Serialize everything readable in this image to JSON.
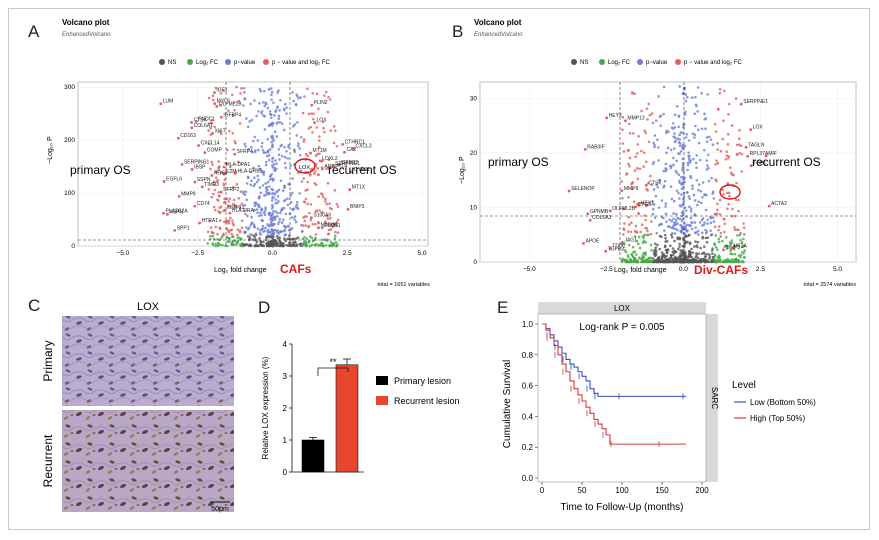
{
  "panelA": {
    "letter": "A",
    "title": "Volcano plot",
    "subtitle": "EnhancedVolcano",
    "legend": [
      "NS",
      "Log₂ FC",
      "p−value",
      "p − value and log₂ FC"
    ],
    "y_title": "−Log₁₀ P",
    "x_title": "Log₂ fold change",
    "group_label": "CAFs",
    "left_annotation": "primary OS",
    "right_annotation": "recurrent OS",
    "total": "total = 1651 variables",
    "x_ticks": [
      "−5.0",
      "−2.5",
      "0.0",
      "2.5",
      "5.0"
    ],
    "y_ticks": [
      "0",
      "100",
      "200",
      "300"
    ],
    "gene_labels_left": [
      "MMP9",
      "LUM",
      "CTSK",
      "E2M",
      "MYL9",
      "OLFML2B",
      "IBSP",
      "SFRP4",
      "HTRA1",
      "XIST",
      "CD74",
      "COL6A1",
      "SERPING1",
      "MMP13",
      "ASPN",
      "HLA-DRA",
      "IGFBP4",
      "CD163",
      "SPP1",
      "HLA-DRB1",
      "CXCL14",
      "HLA-DPA1",
      "EGFL6",
      "TIMP3",
      "FNDC1",
      "IGF1",
      "PLA2G2A",
      "SFRP2",
      "COMP",
      "RGS5",
      "SSPN"
    ],
    "gene_labels_right": [
      "IGFBP2",
      "CYR61",
      "MT1X",
      "FSCN1",
      "MT1M",
      "SERPINE1",
      "CTHRC1",
      "S100A6",
      "BNIP3",
      "LOXL2",
      "ANGPTL4",
      "LOX",
      "NDRG1",
      "PLIN2",
      "CA2",
      "CXCL3"
    ],
    "lox_label": "LOX"
  },
  "panelB": {
    "letter": "B",
    "title": "Volcano plot",
    "subtitle": "EnhancedVolcano",
    "legend": [
      "NS",
      "Log₂ FC",
      "p−value",
      "p − value and log₂ FC"
    ],
    "y_title": "−Log₁₀ P",
    "x_title": "Log₂ fold change",
    "group_label": "Div-CAFs",
    "left_annotation": "primary OS",
    "right_annotation": "recurrent OS",
    "total": "total = 2574 variables",
    "x_ticks": [
      "−5.0",
      "−2.5",
      "0.0",
      "2.5",
      "5.0"
    ],
    "y_ticks": [
      "0",
      "10",
      "20",
      "30"
    ],
    "gene_labels_left": [
      "RAB3IF",
      "TDO2",
      "HEY2",
      "HEY1",
      "SELENOP",
      "OLFML2B",
      "MMP9",
      "CYGB",
      "TGFB3",
      "GPNMB",
      "JAG1",
      "CTSK",
      "COL6A3",
      "APOE",
      "MMP13"
    ],
    "gene_labels_right": [
      "RPL37A",
      "MIF",
      "TGB1",
      "LOX",
      "TIMP3",
      "SERPINE1",
      "MT2A",
      "TAGLN",
      "ACTA2"
    ]
  },
  "panelC": {
    "letter": "C",
    "title": "LOX",
    "row_labels": [
      "Primary",
      "Recurrent"
    ],
    "scale_bar": "50μm"
  },
  "panelD": {
    "letter": "D",
    "y_title": "Relative LOX expression (%)",
    "significance": "**",
    "legend": [
      "Primary lesion",
      "Recurrent lesion"
    ],
    "colors": [
      "#000000",
      "#e8452e"
    ],
    "y_ticks": [
      "0",
      "1",
      "2",
      "3",
      "4"
    ],
    "chart_data": {
      "type": "bar",
      "categories": [
        "Primary lesion",
        "Recurrent lesion"
      ],
      "values": [
        1.0,
        3.35
      ],
      "errors": [
        0.08,
        0.18
      ],
      "ylim": [
        0,
        4
      ],
      "ylabel": "Relative LOX expression (%)"
    }
  },
  "panelE": {
    "letter": "E",
    "strip_top": "LOX",
    "strip_right": "SARC",
    "stat": "Log-rank P = 0.005",
    "y_title": "Cumulative Survival",
    "x_title": "Time to Follow-Up (months)",
    "x_ticks": [
      "0",
      "50",
      "100",
      "150",
      "200"
    ],
    "y_ticks": [
      "0.0",
      "0.2",
      "0.4",
      "0.6",
      "0.8",
      "1.0"
    ],
    "legend_title": "Level",
    "legend": [
      "Low (Bottom 50%)",
      "High (Top 50%)"
    ],
    "colors": [
      "#3050c8",
      "#d83a3a"
    ],
    "chart_data": {
      "type": "line",
      "xlim": [
        0,
        200
      ],
      "ylim": [
        0,
        1
      ],
      "series": [
        {
          "name": "Low (Bottom 50%)",
          "x": [
            0,
            5,
            10,
            15,
            20,
            25,
            30,
            35,
            40,
            45,
            50,
            55,
            60,
            65,
            70,
            80,
            100,
            140,
            180
          ],
          "y": [
            1.0,
            0.97,
            0.93,
            0.89,
            0.85,
            0.81,
            0.77,
            0.74,
            0.72,
            0.69,
            0.66,
            0.63,
            0.58,
            0.55,
            0.53,
            0.53,
            0.53,
            0.53,
            0.53
          ]
        },
        {
          "name": "High (Top 50%)",
          "x": [
            0,
            5,
            10,
            15,
            20,
            25,
            30,
            35,
            40,
            45,
            50,
            55,
            60,
            65,
            70,
            75,
            80,
            85,
            90,
            120,
            150,
            180
          ],
          "y": [
            1.0,
            0.96,
            0.91,
            0.86,
            0.8,
            0.74,
            0.69,
            0.63,
            0.58,
            0.54,
            0.5,
            0.46,
            0.42,
            0.38,
            0.35,
            0.32,
            0.28,
            0.22,
            0.22,
            0.22,
            0.22,
            0.22
          ]
        }
      ]
    }
  }
}
